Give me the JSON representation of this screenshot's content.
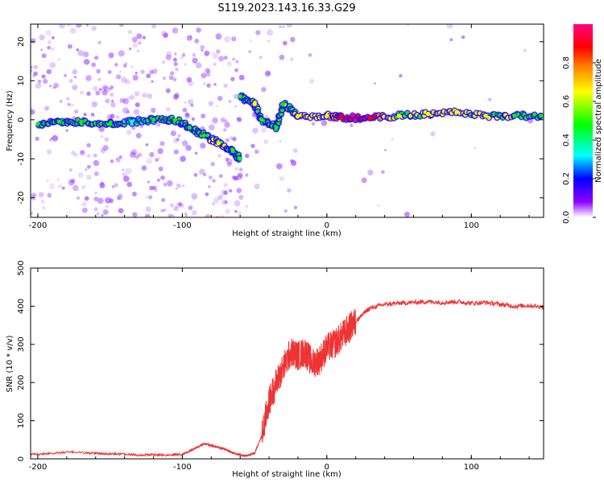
{
  "title": "S119.2023.143.16.33.G29",
  "chart_data": [
    {
      "type": "heatmap",
      "xlabel": "Height of straight line (km)",
      "ylabel": "Frequency (Hz)",
      "xlim": [
        -205,
        150
      ],
      "ylim": [
        -25,
        24.5
      ],
      "xticks": [
        -200,
        -100,
        0,
        100
      ],
      "yticks": [
        -20,
        -10,
        0,
        10,
        20
      ],
      "colorbar": {
        "label": "Normalized spectral amplitude",
        "range": [
          0,
          1
        ],
        "ticks": [
          "0.0",
          "0.2",
          "0.4",
          "0.6",
          "0.8"
        ],
        "colors": [
          "#ffffff",
          "#8f00ff",
          "#0000ff",
          "#00ffff",
          "#00ff00",
          "#ffff00",
          "#ff8000",
          "#ff0000",
          "#ff0080"
        ]
      },
      "ridge": [
        {
          "x": -200,
          "y": -1,
          "v": 0.35
        },
        {
          "x": -185,
          "y": -0.5,
          "v": 0.4
        },
        {
          "x": -170,
          "y": -0.5,
          "v": 0.35
        },
        {
          "x": -150,
          "y": -1,
          "v": 0.4
        },
        {
          "x": -135,
          "y": -0.5,
          "v": 0.3
        },
        {
          "x": -120,
          "y": 0,
          "v": 0.35
        },
        {
          "x": -105,
          "y": 0,
          "v": 0.4
        },
        {
          "x": -95,
          "y": -2,
          "v": 0.4
        },
        {
          "x": -85,
          "y": -4,
          "v": 0.45
        },
        {
          "x": -75,
          "y": -6,
          "v": 0.5
        },
        {
          "x": -65,
          "y": -8,
          "v": 0.45
        },
        {
          "x": -60,
          "y": -10,
          "v": 0.4
        },
        {
          "x": -60,
          "y": 6,
          "v": 0.4
        },
        {
          "x": -50,
          "y": 4,
          "v": 0.5
        },
        {
          "x": -45,
          "y": 0,
          "v": 0.45
        },
        {
          "x": -35,
          "y": -2,
          "v": 0.4
        },
        {
          "x": -30,
          "y": 4,
          "v": 0.45
        },
        {
          "x": -20,
          "y": 1,
          "v": 0.5
        },
        {
          "x": 0,
          "y": 1,
          "v": 0.6
        },
        {
          "x": 10,
          "y": 0.5,
          "v": 0.85
        },
        {
          "x": 30,
          "y": 0.5,
          "v": 0.85
        },
        {
          "x": 50,
          "y": 1,
          "v": 0.5
        },
        {
          "x": 70,
          "y": 1.5,
          "v": 0.5
        },
        {
          "x": 90,
          "y": 2,
          "v": 0.55
        },
        {
          "x": 110,
          "y": 1,
          "v": 0.5
        },
        {
          "x": 130,
          "y": 1,
          "v": 0.45
        },
        {
          "x": 150,
          "y": 1,
          "v": 0.45
        }
      ]
    },
    {
      "type": "line",
      "xlabel": "Height of straight line (km)",
      "ylabel": "SNR (10 * v/v)",
      "xlim": [
        -205,
        150
      ],
      "ylim": [
        0,
        500
      ],
      "xticks": [
        -200,
        -100,
        0,
        100
      ],
      "yticks": [
        0,
        100,
        200,
        300,
        400,
        500
      ],
      "color": "#ee3333",
      "series": [
        {
          "x": [
            -205,
            -190,
            -175,
            -160,
            -150,
            -140,
            -130,
            -120,
            -110,
            -100,
            -95,
            -90,
            -85,
            -80,
            -75,
            -70,
            -65,
            -60,
            -55,
            -50,
            -45,
            -40,
            -35,
            -30,
            -25,
            -20,
            -15,
            -10,
            -5,
            0,
            5,
            10,
            15,
            20,
            25,
            30,
            40,
            50,
            60,
            70,
            80,
            90,
            100,
            110,
            120,
            130,
            140,
            150
          ],
          "y": [
            12,
            15,
            18,
            14,
            13,
            12,
            10,
            11,
            10,
            12,
            20,
            30,
            40,
            35,
            30,
            25,
            15,
            10,
            8,
            15,
            60,
            150,
            200,
            240,
            280,
            270,
            280,
            250,
            260,
            290,
            300,
            320,
            340,
            360,
            380,
            395,
            405,
            408,
            410,
            412,
            410,
            412,
            408,
            410,
            405,
            400,
            402,
            398
          ]
        }
      ]
    }
  ]
}
